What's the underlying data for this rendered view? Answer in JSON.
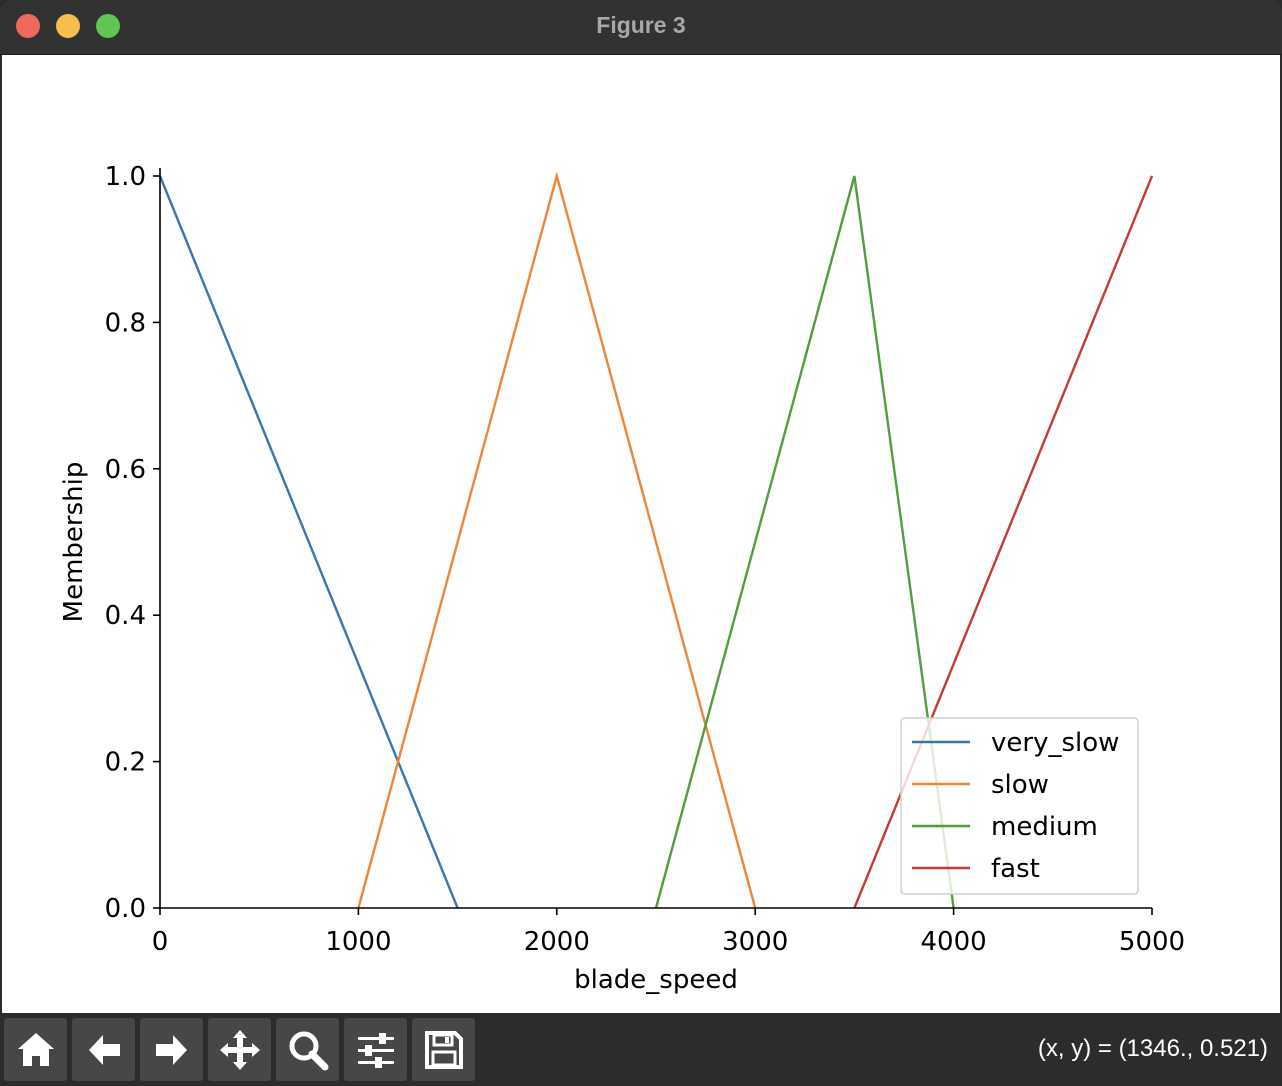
{
  "window": {
    "title": "Figure 3"
  },
  "toolbar": {
    "buttons": [
      {
        "name": "home",
        "icon": "home-icon"
      },
      {
        "name": "back",
        "icon": "arrow-left-icon"
      },
      {
        "name": "forward",
        "icon": "arrow-right-icon"
      },
      {
        "name": "pan",
        "icon": "move-icon"
      },
      {
        "name": "zoom",
        "icon": "search-icon"
      },
      {
        "name": "configure",
        "icon": "sliders-icon"
      },
      {
        "name": "save",
        "icon": "save-icon"
      }
    ],
    "coords_text": "(x, y) = (1346., 0.521)"
  },
  "chart_data": {
    "type": "line",
    "xlabel": "blade_speed",
    "ylabel": "Membership",
    "xlim": [
      0,
      5000
    ],
    "ylim": [
      0,
      1.0
    ],
    "xticks": [
      "0",
      "1000",
      "2000",
      "3000",
      "4000",
      "5000"
    ],
    "yticks": [
      "0.0",
      "0.2",
      "0.4",
      "0.6",
      "0.8",
      "1.0"
    ],
    "legend_position": "lower-right",
    "series": [
      {
        "name": "very_slow",
        "color": "#3a75ae",
        "x": [
          0,
          1500
        ],
        "y": [
          1.0,
          0.0
        ]
      },
      {
        "name": "slow",
        "color": "#ef8636",
        "x": [
          1000,
          2000,
          3000
        ],
        "y": [
          0.0,
          1.0,
          0.0
        ]
      },
      {
        "name": "medium",
        "color": "#519e3e",
        "x": [
          2500,
          3500,
          4000
        ],
        "y": [
          0.0,
          1.0,
          0.0
        ]
      },
      {
        "name": "fast",
        "color": "#c53a32",
        "x": [
          3500,
          5000
        ],
        "y": [
          0.0,
          1.0
        ]
      }
    ]
  }
}
